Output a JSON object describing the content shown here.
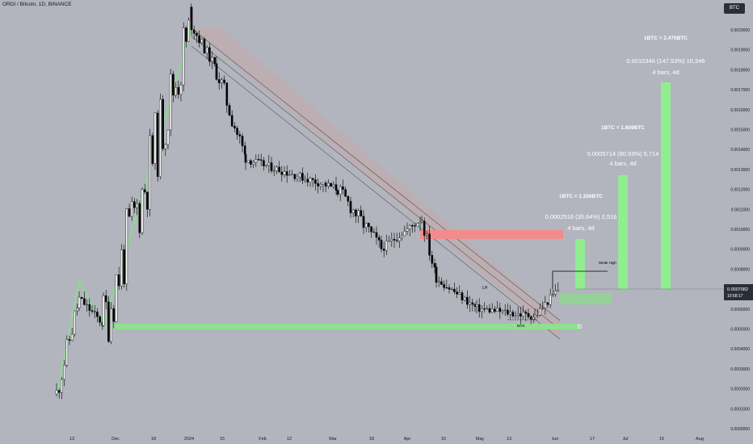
{
  "header": {
    "title": "ORDI / Bitcoin, 1D, BINANCE",
    "currency_badge": "BTC"
  },
  "price_axis": {
    "ticks": [
      "0.0020000",
      "0.0019000",
      "0.0018000",
      "0.0017000",
      "0.0016000",
      "0.0015000",
      "0.0014000",
      "0.0013000",
      "0.0012000",
      "0.0011000",
      "0.0010000",
      "0.0009000",
      "0.0008000",
      "0.0007000",
      "0.0006000",
      "0.0005000",
      "0.0004000",
      "0.0003000",
      "0.0002000",
      "0.0001000",
      "0.0000000",
      "-0.0000000"
    ],
    "current_price": "0.0007082",
    "countdown": "10:58:17"
  },
  "time_axis": {
    "ticks": [
      "13",
      "Dec",
      "18",
      "2024",
      "15",
      "Feb",
      "12",
      "Mar",
      "18",
      "Apr",
      "15",
      "May",
      "13",
      "Jun",
      "17",
      "Jul",
      "15",
      "Aug"
    ]
  },
  "targets": [
    {
      "label_top": "1BTC = 1.356BTC",
      "line1": "0.0002516 (35.64%) 2,516",
      "line2": "4 bars, 4d"
    },
    {
      "label_top": "1BTC = 1.809BTC",
      "line1": "0.0005714 (80.93%) 5,714",
      "line2": "4 bars, 4d"
    },
    {
      "label_top": "1BTC = 2.475BTC",
      "line1": "0.0010346 (147.53%) 10,346",
      "line2": "4 bars, 4d"
    }
  ],
  "annotations": {
    "weak_high": "Weak High",
    "lh": "LH",
    "bos": "BOS",
    "d": "D"
  },
  "colors": {
    "up_candle": "#ffffff",
    "down_candle": "#000000",
    "channel_fill": "#c4a7a7",
    "supply_zone": "#f28b8b",
    "demand_zone": "#90e090",
    "target_bar": "#90ee90",
    "background": "#b2b5be"
  },
  "chart_data": {
    "type": "candlestick",
    "title": "ORDI / Bitcoin, 1D, BINANCE",
    "xlabel": "",
    "ylabel": "",
    "ylim": [
      0.0,
      0.0021
    ],
    "grid": false,
    "current_price": 0.0007082,
    "swing_points": [
      {
        "date": "2023-11-02",
        "price": 0.00017
      },
      {
        "date": "2023-11-13",
        "price": 0.00065
      },
      {
        "date": "2023-11-25",
        "price": 0.00052
      },
      {
        "date": "2024-01-02",
        "price": 0.00202
      },
      {
        "date": "2024-01-15",
        "price": 0.0018
      },
      {
        "date": "2024-02-01",
        "price": 0.00135
      },
      {
        "date": "2024-03-01",
        "price": 0.0012
      },
      {
        "date": "2024-03-20",
        "price": 0.0009
      },
      {
        "date": "2024-04-05",
        "price": 0.00105
      },
      {
        "date": "2024-04-12",
        "price": 0.00075
      },
      {
        "date": "2024-04-25",
        "price": 0.0006
      },
      {
        "date": "2024-05-28",
        "price": 0.00056
      },
      {
        "date": "2024-06-05",
        "price": 0.00071
      }
    ],
    "projections": [
      {
        "start": 0.0007082,
        "end": 0.00096,
        "change": 0.0002516,
        "percent": 35.64,
        "bars": 4
      },
      {
        "start": 0.0007082,
        "end": 0.00128,
        "change": 0.0005714,
        "percent": 80.93,
        "bars": 4
      },
      {
        "start": 0.0007082,
        "end": 0.00174,
        "change": 0.0010346,
        "percent": 147.53,
        "bars": 4
      }
    ],
    "supply_zone": [
      0.00095,
      0.001
    ],
    "demand_zones": [
      [
        0.0005,
        0.00053
      ],
      [
        0.00062,
        0.00067
      ]
    ],
    "weak_high": 0.0008
  }
}
